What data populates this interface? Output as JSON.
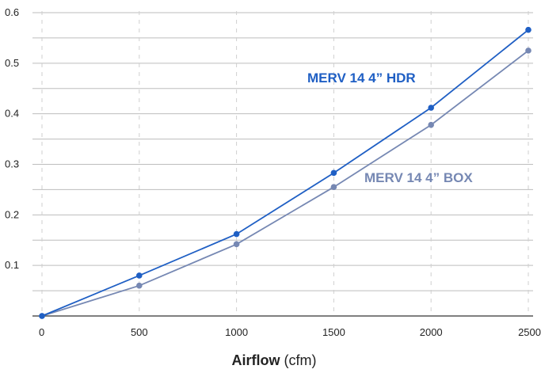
{
  "chart_data": {
    "type": "line",
    "x": [
      0,
      500,
      1000,
      1500,
      2000,
      2500
    ],
    "xlim": [
      0,
      2500
    ],
    "ylim": [
      0,
      0.6
    ],
    "x_ticks": [
      "0",
      "500",
      "1000",
      "1500",
      "2000",
      "2500"
    ],
    "y_ticks": [
      "0.1",
      "0.2",
      "0.3",
      "0.4",
      "0.5",
      "0.6"
    ],
    "xlabel_bold": "Airflow",
    "xlabel_unit": "(cfm)",
    "grid": true,
    "series": [
      {
        "name": "MERV 14 4” HDR",
        "color": "#1f5fc4",
        "values": [
          0.0,
          0.08,
          0.162,
          0.283,
          0.412,
          0.566
        ]
      },
      {
        "name": "MERV 14 4” BOX",
        "color": "#7688b3",
        "values": [
          0.0,
          0.06,
          0.142,
          0.255,
          0.378,
          0.525
        ]
      }
    ]
  }
}
